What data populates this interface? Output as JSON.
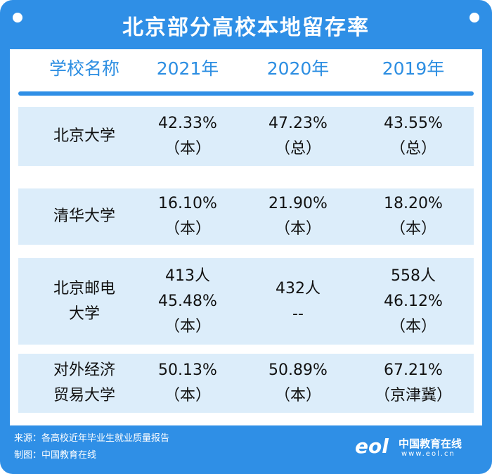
{
  "header": {
    "title": "北京部分高校本地留存率"
  },
  "table": {
    "columns": [
      "学校名称",
      "2021年",
      "2020年",
      "2019年"
    ],
    "rows": [
      [
        [
          "北京大学"
        ],
        [
          "42.33%",
          "（本）"
        ],
        [
          "47.23%",
          "（总）"
        ],
        [
          "43.55%",
          "（总）"
        ]
      ],
      [
        [
          "清华大学"
        ],
        [
          "16.10%",
          "（本）"
        ],
        [
          "21.90%",
          "（本）"
        ],
        [
          "18.20%",
          "（本）"
        ]
      ],
      [
        [
          "北京邮电",
          "大学"
        ],
        [
          "413人",
          "45.48%",
          "（本）"
        ],
        [
          "432人",
          "--"
        ],
        [
          "558人",
          "46.12%",
          "（本）"
        ]
      ],
      [
        [
          "对外经济",
          "贸易大学"
        ],
        [
          "50.13%",
          "（本）"
        ],
        [
          "50.89%",
          "（本）"
        ],
        [
          "67.21%",
          "（京津冀）"
        ]
      ]
    ]
  },
  "footer": {
    "source": "来源：各高校近年毕业生就业质量报告",
    "credit": "制图：中国教育在线",
    "logo_mark": "eol",
    "logo_name": "中国教育在线",
    "logo_url": "www.eol.cn"
  }
}
